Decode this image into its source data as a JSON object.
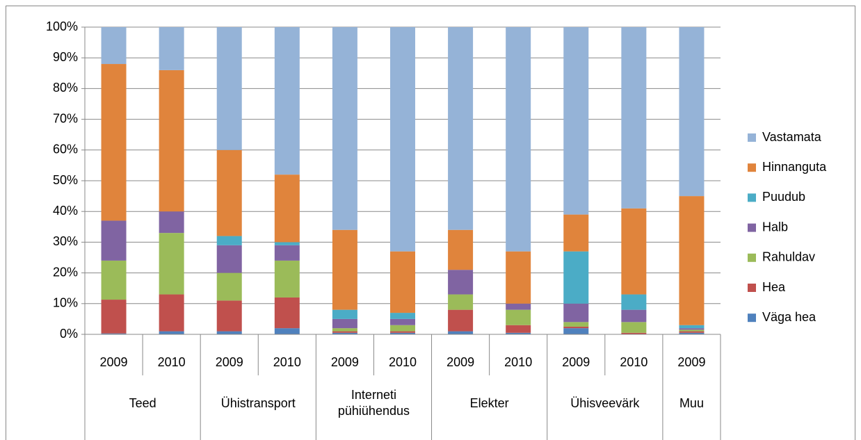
{
  "chart_data": {
    "type": "stacked_bar_percent",
    "groups": [
      {
        "name": "Teed",
        "categories": [
          "2009",
          "2010"
        ]
      },
      {
        "name": "Ühistransport",
        "categories": [
          "2009",
          "2010"
        ]
      },
      {
        "name": "Interneti pühiühendus",
        "categories": [
          "2009",
          "2010"
        ]
      },
      {
        "name": "Elekter",
        "categories": [
          "2009",
          "2010"
        ]
      },
      {
        "name": "Ühisveevärk",
        "categories": [
          "2009",
          "2010"
        ]
      },
      {
        "name": "Muu",
        "categories": [
          "2009"
        ]
      }
    ],
    "series": [
      {
        "name": "Väga hea",
        "color": "#4f81bd",
        "values": [
          0.3,
          1,
          1,
          2,
          0.5,
          0.5,
          1,
          0.5,
          2,
          0,
          0.5
        ]
      },
      {
        "name": "Hea",
        "color": "#c0504d",
        "values": [
          11,
          12,
          10,
          10,
          0.5,
          0.5,
          7,
          2.5,
          0.5,
          0.5,
          0.5
        ]
      },
      {
        "name": "Rahuldav",
        "color": "#9bbb59",
        "values": [
          12.7,
          20,
          9,
          12,
          1,
          2,
          5,
          5,
          1.5,
          3.5,
          0.5
        ]
      },
      {
        "name": "Halb",
        "color": "#8064a2",
        "values": [
          13,
          7,
          9,
          5,
          3,
          2,
          8,
          2,
          6,
          4,
          0.5
        ]
      },
      {
        "name": "Puudub",
        "color": "#4bacc6",
        "values": [
          0,
          0,
          3,
          1,
          3,
          2,
          0,
          0,
          17,
          5,
          1
        ]
      },
      {
        "name": "Hinnanguta",
        "color": "#e0843c",
        "values": [
          51,
          46,
          28,
          22,
          26,
          20,
          13,
          17,
          12,
          28,
          42
        ]
      },
      {
        "name": "Vastamata",
        "color": "#95b3d7",
        "values": [
          12,
          14,
          40,
          48,
          66,
          73,
          66,
          73,
          61,
          59,
          55
        ]
      }
    ],
    "ylim": [
      0,
      100
    ],
    "yticks": [
      {
        "value": 0,
        "label": "0%"
      },
      {
        "value": 10,
        "label": "10%"
      },
      {
        "value": 20,
        "label": "20%"
      },
      {
        "value": 30,
        "label": "30%"
      },
      {
        "value": 40,
        "label": "40%"
      },
      {
        "value": 50,
        "label": "50%"
      },
      {
        "value": 60,
        "label": "60%"
      },
      {
        "value": 70,
        "label": "70%"
      },
      {
        "value": 80,
        "label": "80%"
      },
      {
        "value": 90,
        "label": "90%"
      },
      {
        "value": 100,
        "label": "100%"
      }
    ],
    "grid": true,
    "legend": "right"
  }
}
